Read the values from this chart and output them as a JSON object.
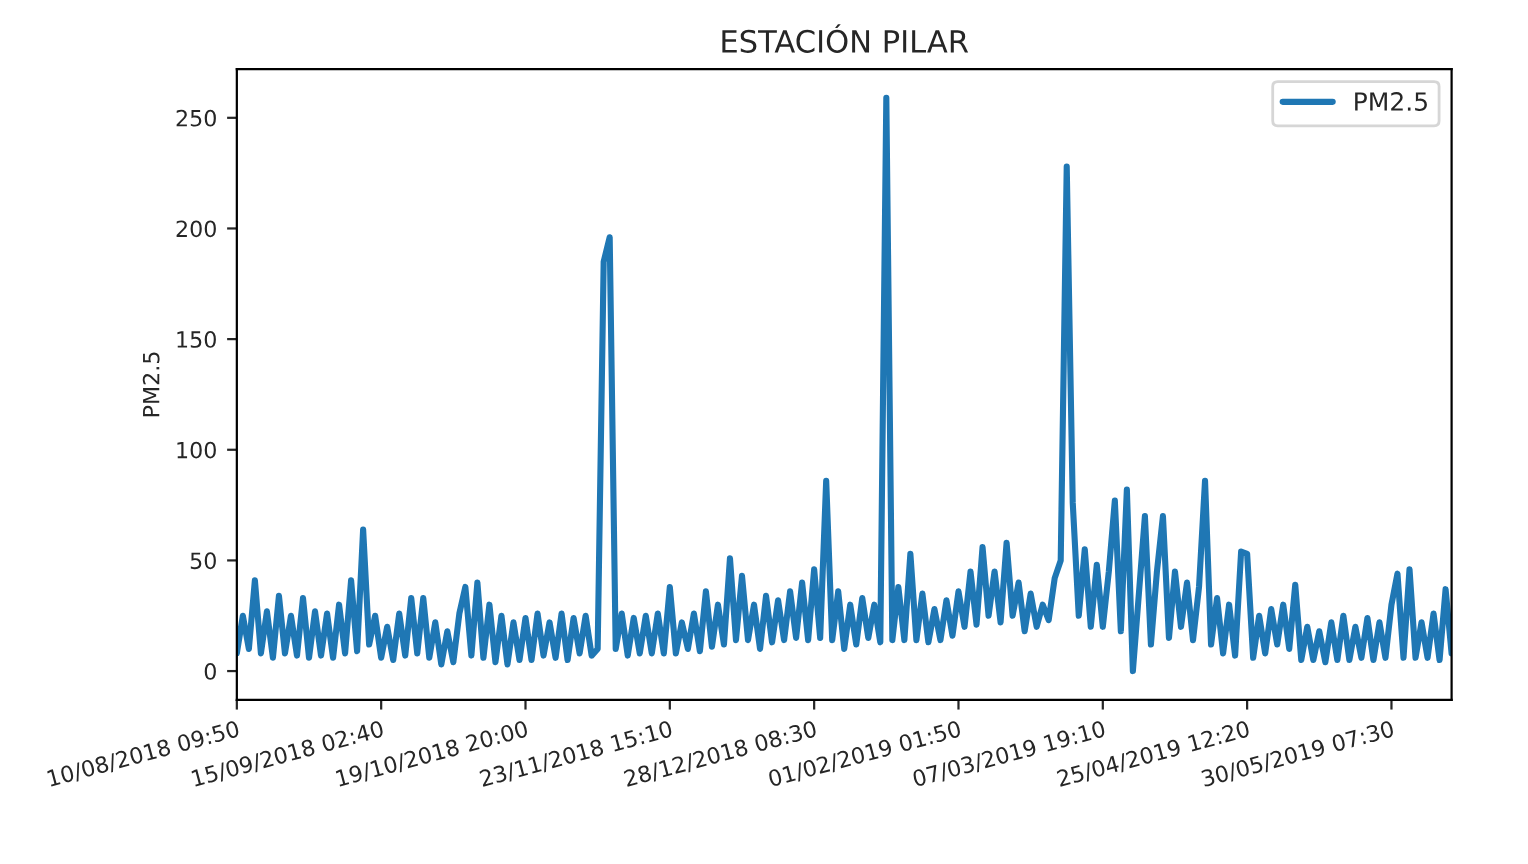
{
  "chart_data": {
    "type": "line",
    "title": "ESTACIÓN PILAR",
    "ylabel": "PM2.5",
    "categories": [
      "10/08/2018 09:50",
      null,
      null,
      null,
      null,
      null,
      null,
      null,
      null,
      null,
      null,
      null,
      null,
      null,
      null,
      null,
      null,
      null,
      null,
      null,
      null,
      null,
      null,
      null,
      "15/09/2018 02:40",
      null,
      null,
      null,
      null,
      null,
      null,
      null,
      null,
      null,
      null,
      null,
      null,
      null,
      null,
      null,
      null,
      null,
      null,
      null,
      null,
      null,
      null,
      null,
      "19/10/2018 20:00",
      null,
      null,
      null,
      null,
      null,
      null,
      null,
      null,
      null,
      null,
      null,
      null,
      null,
      null,
      null,
      null,
      null,
      null,
      null,
      null,
      null,
      null,
      null,
      "23/11/2018 15:10",
      null,
      null,
      null,
      null,
      null,
      null,
      null,
      null,
      null,
      null,
      null,
      null,
      null,
      null,
      null,
      null,
      null,
      null,
      null,
      null,
      null,
      null,
      null,
      "28/12/2018 08:30",
      null,
      null,
      null,
      null,
      null,
      null,
      null,
      null,
      null,
      null,
      null,
      null,
      null,
      null,
      null,
      null,
      null,
      null,
      null,
      null,
      null,
      null,
      null,
      "01/02/2019 01:50",
      null,
      null,
      null,
      null,
      null,
      null,
      null,
      null,
      null,
      null,
      null,
      null,
      null,
      null,
      null,
      null,
      null,
      null,
      null,
      null,
      null,
      null,
      null,
      "07/03/2019 19:10",
      null,
      null,
      null,
      null,
      null,
      null,
      null,
      null,
      null,
      null,
      null,
      null,
      null,
      null,
      null,
      null,
      null,
      null,
      null,
      null,
      null,
      null,
      null,
      "25/04/2019 12:20",
      null,
      null,
      null,
      null,
      null,
      null,
      null,
      null,
      null,
      null,
      null,
      null,
      null,
      null,
      null,
      null,
      null,
      null,
      null,
      null,
      null,
      null,
      null,
      "30/05/2019 07:30",
      null,
      null,
      null,
      null,
      null,
      null,
      null,
      null,
      null,
      null
    ],
    "ylim": [
      -13,
      272
    ],
    "yticks": [
      0,
      50,
      100,
      150,
      200,
      250
    ],
    "legend": "top right",
    "grid": false,
    "marker": "none",
    "line_style": "solid",
    "series": [
      {
        "name": "PM2.5",
        "color": "#1f77b4",
        "values": [
          8,
          25,
          10,
          41,
          8,
          27,
          6,
          34,
          8,
          25,
          7,
          33,
          6,
          27,
          7,
          26,
          6,
          30,
          8,
          41,
          9,
          64,
          12,
          25,
          6,
          20,
          5,
          26,
          7,
          33,
          8,
          33,
          6,
          22,
          3,
          18,
          4,
          26,
          38,
          7,
          40,
          6,
          30,
          4,
          25,
          3,
          22,
          5,
          24,
          5,
          26,
          7,
          22,
          6,
          26,
          5,
          24,
          8,
          25,
          7,
          10,
          185,
          196,
          10,
          26,
          7,
          24,
          8,
          25,
          8,
          26,
          8,
          38,
          8,
          22,
          10,
          26,
          9,
          36,
          11,
          30,
          12,
          51,
          14,
          43,
          14,
          30,
          10,
          34,
          13,
          32,
          14,
          36,
          15,
          40,
          14,
          46,
          15,
          86,
          14,
          36,
          10,
          30,
          12,
          33,
          15,
          30,
          13,
          259,
          14,
          38,
          14,
          53,
          14,
          35,
          13,
          28,
          14,
          32,
          16,
          36,
          20,
          45,
          21,
          56,
          25,
          45,
          22,
          58,
          25,
          40,
          18,
          35,
          20,
          30,
          23,
          42,
          50,
          228,
          76,
          25,
          55,
          20,
          48,
          20,
          45,
          77,
          18,
          82,
          0,
          35,
          70,
          12,
          45,
          70,
          15,
          45,
          20,
          40,
          14,
          38,
          86,
          12,
          33,
          8,
          30,
          7,
          54,
          53,
          6,
          25,
          8,
          28,
          12,
          30,
          10,
          39,
          5,
          20,
          5,
          18,
          4,
          22,
          5,
          25,
          5,
          20,
          6,
          24,
          5,
          22,
          6,
          30,
          44,
          6,
          46,
          6,
          22,
          6,
          26,
          5,
          37,
          8
        ]
      }
    ]
  }
}
